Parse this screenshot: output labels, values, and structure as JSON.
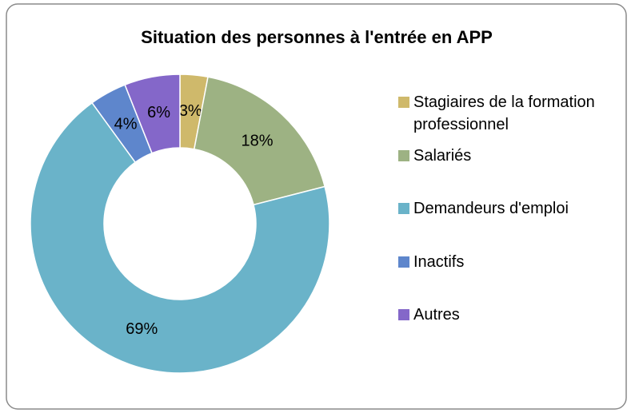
{
  "chart_data": {
    "type": "donut",
    "title": "Situation des personnes à l'entrée en APP",
    "categories": [
      "Stagiaires de la formation professionnel",
      "Salariés",
      "Demandeurs d'emploi",
      "Inactifs",
      "Autres"
    ],
    "values": [
      3,
      18,
      69,
      4,
      6
    ],
    "value_labels": [
      "3%",
      "18%",
      "69%",
      "4%",
      "6%"
    ],
    "colors": [
      "#cfb96b",
      "#9db283",
      "#6ab3c9",
      "#5e86cc",
      "#8467c9"
    ],
    "legend": "right"
  }
}
